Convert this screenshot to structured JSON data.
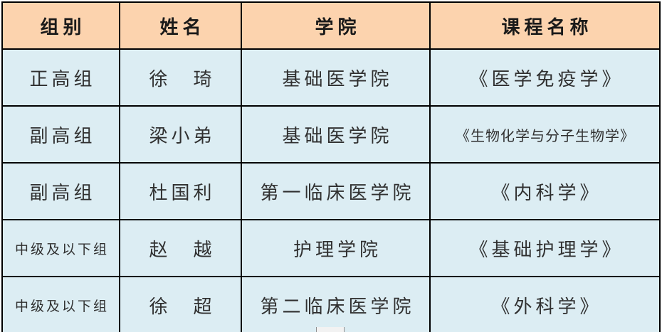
{
  "table": {
    "columns": {
      "group": "组别",
      "name": "姓名",
      "college": "学院",
      "course": "课程名称"
    },
    "rows": [
      {
        "group": "正高组",
        "name": "徐　琦",
        "college": "基础医学院",
        "course": "《医学免疫学》"
      },
      {
        "group": "副高组",
        "name": "梁小弟",
        "college": "基础医学院",
        "course": "《生物化学与分子生物学》"
      },
      {
        "group": "副高组",
        "name": "杜国利",
        "college": "第一临床医学院",
        "course": "《内科学》"
      },
      {
        "group": "中级及以下组",
        "name": "赵　越",
        "college": "护理学院",
        "course": "《基础护理学》"
      },
      {
        "group": "中级及以下组",
        "name": "徐　超",
        "college": "第二临床医学院",
        "course": "《外科学》"
      }
    ]
  },
  "colors": {
    "header_background": "#fcd3ae",
    "row_background": "#dcedf3",
    "border": "#000000",
    "header_text": "#1a1a1a",
    "body_text": "#303030"
  }
}
